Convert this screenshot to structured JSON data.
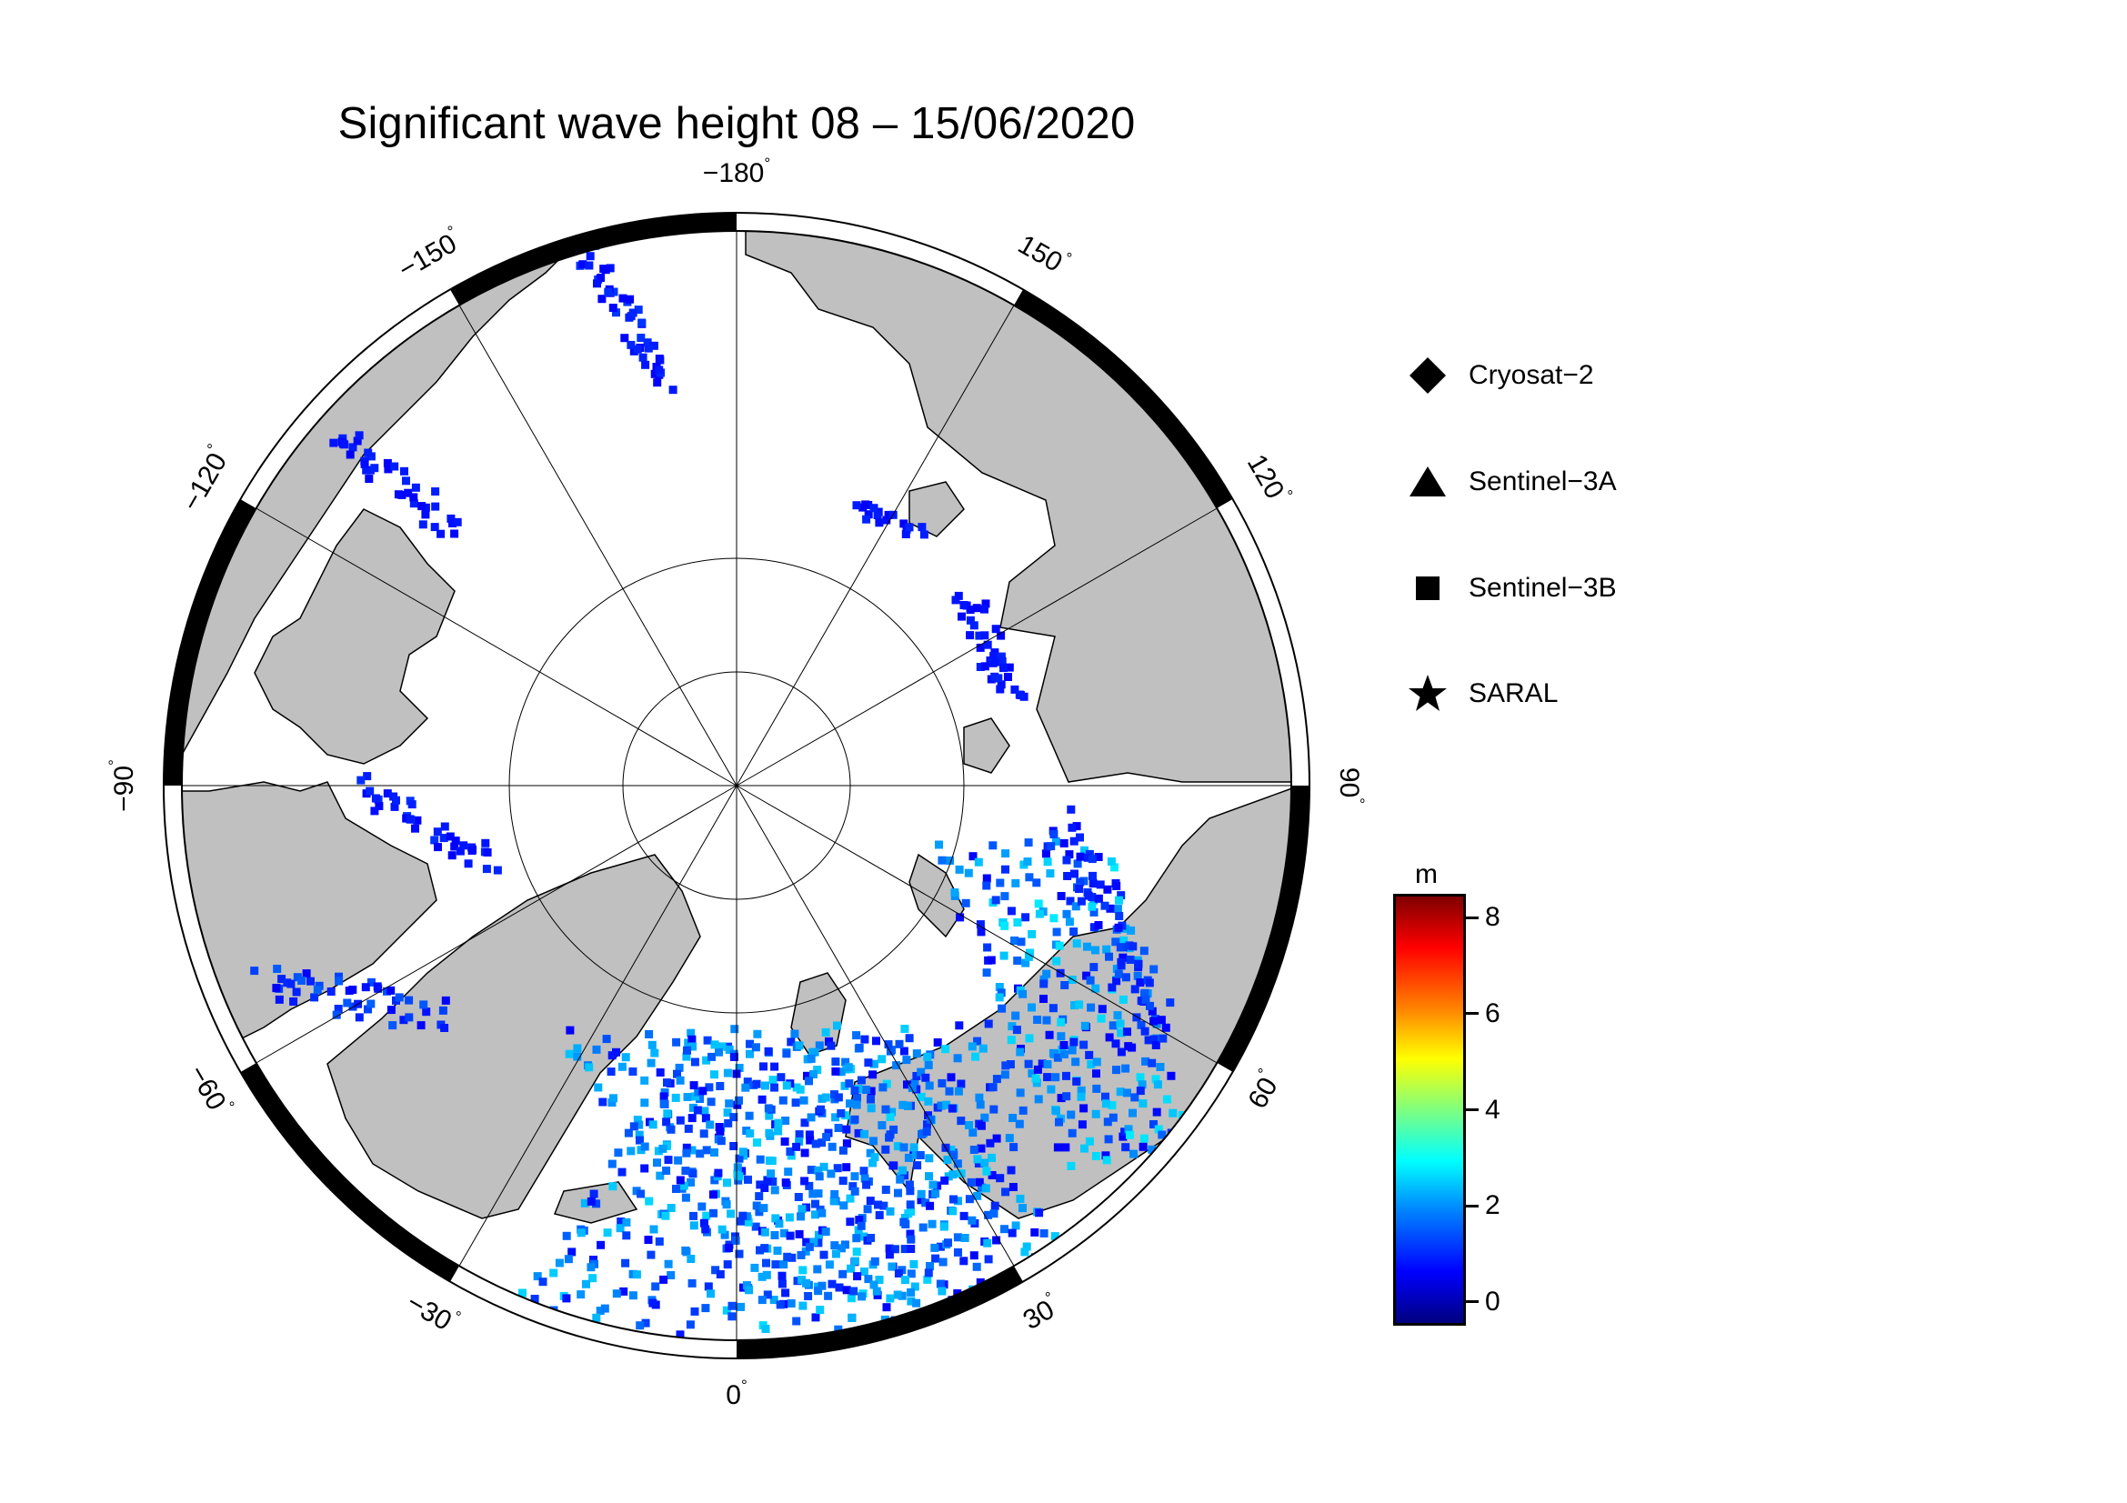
{
  "title": "Significant wave height 08 – 15/06/2020",
  "map": {
    "projection": "polar stereographic (North Pole)",
    "longitude_labels": [
      {
        "lon": -180,
        "text": "−180",
        "deg": "°"
      },
      {
        "lon": 150,
        "text": "150",
        "deg": "°"
      },
      {
        "lon": 120,
        "text": "120",
        "deg": "°"
      },
      {
        "lon": 90,
        "text": "90",
        "deg": "°"
      },
      {
        "lon": 60,
        "text": "60",
        "deg": "°"
      },
      {
        "lon": 30,
        "text": "30",
        "deg": "°"
      },
      {
        "lon": 0,
        "text": "0",
        "deg": "°"
      },
      {
        "lon": -30,
        "text": "−30",
        "deg": "°"
      },
      {
        "lon": -60,
        "text": "−60",
        "deg": "°"
      },
      {
        "lon": -90,
        "text": "−90",
        "deg": "°"
      },
      {
        "lon": -120,
        "text": "−120",
        "deg": "°"
      },
      {
        "lon": -150,
        "text": "−150",
        "deg": "°"
      }
    ],
    "colors": {
      "land": "#c0c0c0",
      "ocean": "#ffffff",
      "coast": "#000000"
    }
  },
  "legend": {
    "items": [
      {
        "symbol": "diamond-icon",
        "label": "Cryosat−2"
      },
      {
        "symbol": "triangle-icon",
        "label": "Sentinel−3A"
      },
      {
        "symbol": "square-icon",
        "label": "Sentinel−3B"
      },
      {
        "symbol": "star-icon",
        "label": "SARAL"
      }
    ]
  },
  "colorbar": {
    "unit": "m",
    "range": [
      -0.5,
      8.5
    ],
    "ticks": [
      "0",
      "2",
      "4",
      "6",
      "8"
    ],
    "colormap": "jet"
  }
}
